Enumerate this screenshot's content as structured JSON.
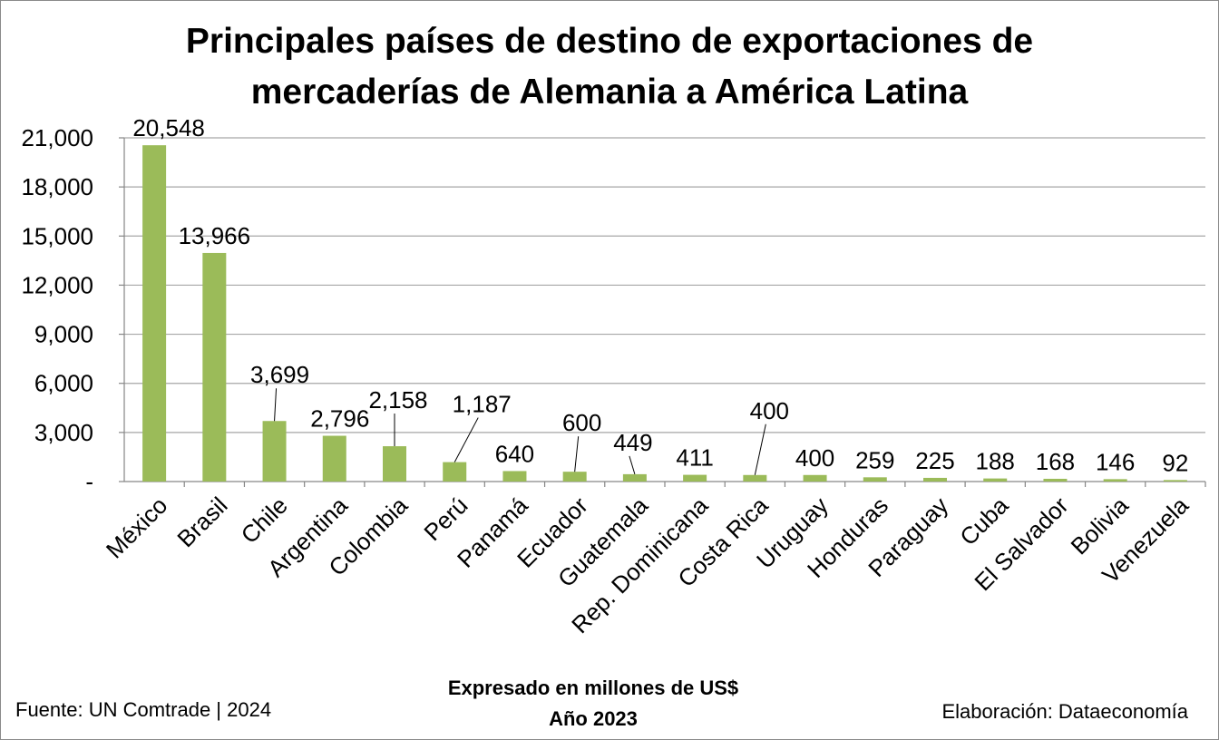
{
  "chart_data": {
    "type": "bar",
    "title_lines": [
      "Principales países de destino de exportaciones de",
      "mercaderías de Alemania a América Latina"
    ],
    "categories": [
      "México",
      "Brasil",
      "Chile",
      "Argentina",
      "Colombia",
      "Perú",
      "Panamá",
      "Ecuador",
      "Guatemala",
      "Rep. Dominicana",
      "Costa Rica",
      "Uruguay",
      "Honduras",
      "Paraguay",
      "Cuba",
      "El Salvador",
      "Bolivia",
      "Venezuela"
    ],
    "values": [
      20548,
      13966,
      3699,
      2796,
      2158,
      1187,
      640,
      600,
      449,
      411,
      400,
      400,
      259,
      225,
      188,
      168,
      146,
      92
    ],
    "data_labels": [
      "20,548",
      "13,966",
      "3,699",
      "2,796",
      "2,158",
      "1,187",
      "640",
      "600",
      "449",
      "411",
      "400",
      "400",
      "259",
      "225",
      "188",
      "168",
      "146",
      "92"
    ],
    "y_ticks": [
      {
        "value": 0,
        "label": "-"
      },
      {
        "value": 3000,
        "label": "3,000"
      },
      {
        "value": 6000,
        "label": "6,000"
      },
      {
        "value": 9000,
        "label": "9,000"
      },
      {
        "value": 12000,
        "label": "12,000"
      },
      {
        "value": 15000,
        "label": "15,000"
      },
      {
        "value": 18000,
        "label": "18,000"
      },
      {
        "value": 21000,
        "label": "21,000"
      }
    ],
    "ylim": [
      0,
      21000
    ],
    "grid": true,
    "bar_color": "#9bbb59",
    "grid_color": "#a6a6a6",
    "subtitle_lines": [
      "Expresado en millones de US$",
      "Año 2023"
    ],
    "source": "Fuente: UN Comtrade | 2024",
    "credit": "Elaboración: Dataeconomía"
  }
}
